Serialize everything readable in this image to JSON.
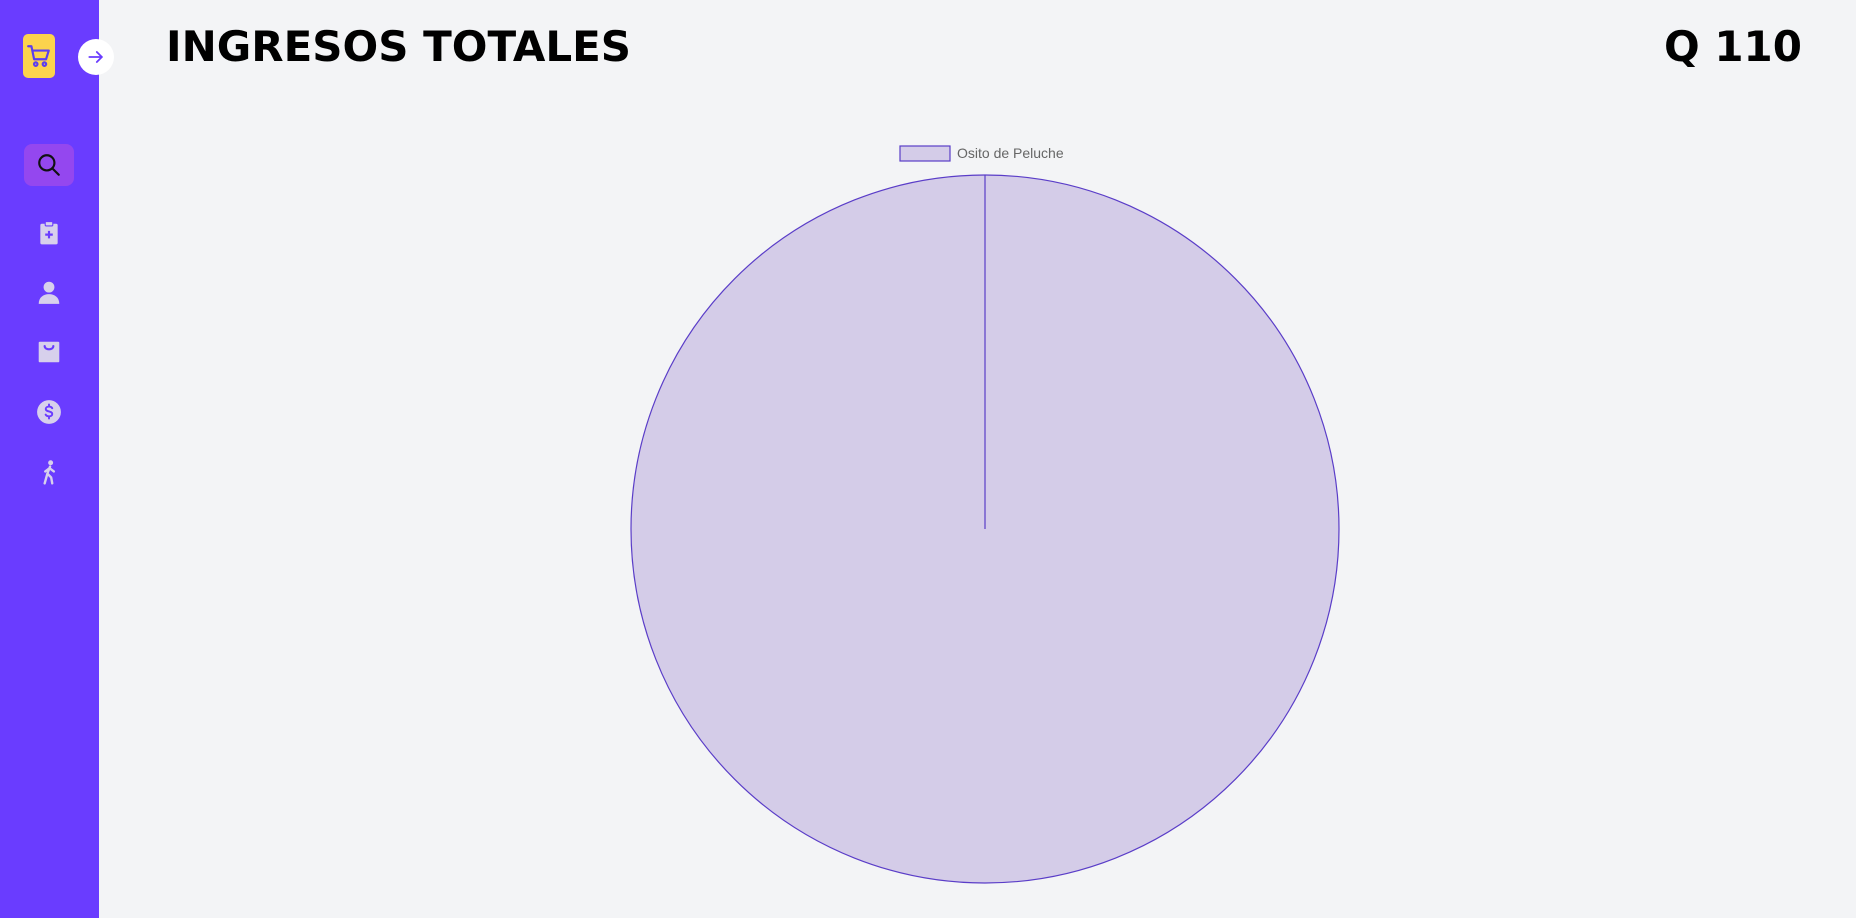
{
  "sidebar": {
    "logo_icon": "shopping-cart-icon",
    "toggle_icon": "arrow-right-icon",
    "items": [
      {
        "icon": "search-icon",
        "active": true
      },
      {
        "icon": "clipboard-plus-icon",
        "active": false
      },
      {
        "icon": "user-icon",
        "active": false
      },
      {
        "icon": "shopping-bag-icon",
        "active": false
      },
      {
        "icon": "dollar-circle-icon",
        "active": false
      },
      {
        "icon": "walking-person-icon",
        "active": false
      }
    ]
  },
  "header": {
    "title": "INGRESOS TOTALES",
    "total": "Q 110"
  },
  "colors": {
    "sidebar": "#6a3cff",
    "active_item": "#9447ef",
    "logo": "#fcd34d",
    "icon": "#d7d0ec",
    "slice_fill": "#d4cce8",
    "slice_border": "#5a3dc8",
    "background": "#f3f4f6"
  },
  "chart_data": {
    "type": "pie",
    "labels": [
      "Osito de Peluche"
    ],
    "values": [
      110
    ],
    "legend": "top"
  }
}
